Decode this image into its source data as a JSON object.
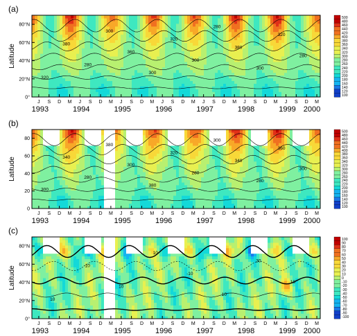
{
  "colors": {
    "background": "#ffffff",
    "contour_line": "#000000",
    "missing": "#ffffff",
    "scale_abs": [
      "#1240c8",
      "#1a78e8",
      "#15b4f0",
      "#13d9d9",
      "#3ee8c0",
      "#7ff0a0",
      "#b8f070",
      "#e8f050",
      "#f8d838",
      "#f8a828",
      "#f07020",
      "#e03018",
      "#c00000"
    ],
    "scale_diff": [
      "#1240c8",
      "#1a78e8",
      "#15b4f0",
      "#13d9d9",
      "#3ee8c0",
      "#7ff0a0",
      "#b8f070",
      "#e8f050",
      "#f8d838",
      "#f8a828",
      "#f07020",
      "#e03018",
      "#c00000"
    ]
  },
  "chart_data": [
    {
      "panel": "(a)",
      "type": "heatmap",
      "ylabel": "Latitude",
      "yticks": [
        "0°",
        "20°N",
        "40°N",
        "60°N",
        "80°N"
      ],
      "ylim": [
        0,
        90
      ],
      "x_start_year": 1993,
      "x_end_year": 2000,
      "month_ticks": [
        "M",
        "J",
        "S",
        "D"
      ],
      "year_labels": [
        "1993",
        "1994",
        "1995",
        "1996",
        "1997",
        "1998",
        "1999",
        "2000"
      ],
      "colorbar_ticks": [
        "500",
        "480",
        "460",
        "440",
        "420",
        "400",
        "380",
        "360",
        "340",
        "320",
        "300",
        "280",
        "260",
        "240",
        "220",
        "200",
        "180",
        "160",
        "140",
        "120",
        "100"
      ],
      "contour_labels": [
        "320",
        "380",
        "280",
        "300",
        "360",
        "300",
        "320",
        "300",
        "280",
        "380",
        "300",
        "320",
        "280"
      ],
      "gaps": []
    },
    {
      "panel": "(b)",
      "type": "heatmap",
      "ylabel": "Latitude",
      "yticks": [
        "0",
        "20",
        "40",
        "60",
        "80"
      ],
      "ylim": [
        0,
        90
      ],
      "x_start_year": 1993,
      "x_end_year": 2000,
      "month_ticks": [
        "M",
        "J",
        "S",
        "D"
      ],
      "year_labels": [
        "1993",
        "1994",
        "1995",
        "1996",
        "1997",
        "1998",
        "1999",
        "2000"
      ],
      "colorbar_ticks": [
        "500",
        "480",
        "460",
        "440",
        "420",
        "400",
        "380",
        "360",
        "340",
        "320",
        "300",
        "280",
        "260",
        "240",
        "220",
        "200",
        "180",
        "160",
        "140",
        "120",
        "100"
      ],
      "contour_labels": [
        "300",
        "340",
        "280",
        "380",
        "300",
        "380",
        "320",
        "280",
        "300",
        "340",
        "280",
        "360",
        "300"
      ],
      "gaps": [
        [
          1995.0,
          1995.25
        ]
      ]
    },
    {
      "panel": "(c)",
      "type": "heatmap",
      "ylabel": "Latitude",
      "yticks": [
        "0°",
        "20°N",
        "40°N",
        "60°N",
        "80°N"
      ],
      "ylim": [
        0,
        90
      ],
      "x_start_year": 1993,
      "x_end_year": 2000,
      "month_ticks": [
        "M",
        "J",
        "S",
        "D"
      ],
      "year_labels": [
        "1993",
        "1994",
        "1995",
        "1996",
        "1997",
        "1998",
        "1999",
        "2000"
      ],
      "colorbar_ticks": [
        "100",
        "90",
        "80",
        "70",
        "60",
        "50",
        "40",
        "30",
        "20",
        "10",
        "0",
        "-10",
        "-20",
        "-30",
        "-40",
        "-50",
        "-60",
        "-70",
        "-80",
        "-90",
        "-100"
      ],
      "contour_labels": [
        "10",
        "-10",
        "10",
        "10",
        "-10",
        "10",
        "30",
        "10"
      ],
      "gaps": [
        [
          1995.0,
          1995.25
        ]
      ]
    }
  ]
}
